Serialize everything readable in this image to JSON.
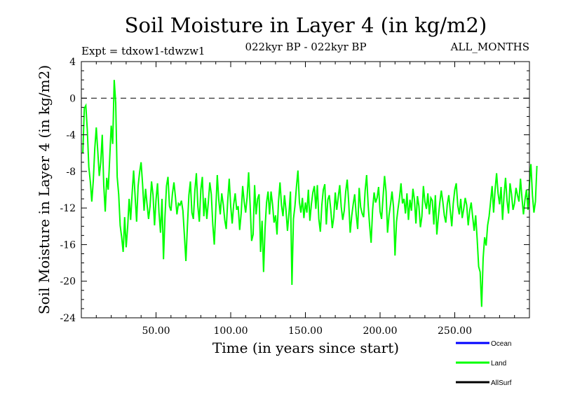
{
  "chart_data": {
    "type": "line",
    "title": "Soil Moisture in Layer 4 (in kg/m2)",
    "subtitle": "022kyr BP - 022kyr BP",
    "experiment": "Expt = tdxow1-tdwzw1",
    "months": "ALL_MONTHS",
    "xlabel": "Time (in years since start)",
    "ylabel": "Soil Moisture in Layer 4 (in kg/m2)",
    "xlim": [
      0,
      300
    ],
    "ylim": [
      -24,
      4
    ],
    "x_ticks": [
      50,
      100,
      150,
      200,
      250
    ],
    "x_tick_labels": [
      "50.00",
      "100.00",
      "150.00",
      "200.00",
      "250.00"
    ],
    "y_ticks": [
      4,
      0,
      -4,
      -8,
      -12,
      -16,
      -20,
      -24
    ],
    "y_tick_labels": [
      "4",
      "0",
      "-4",
      "-8",
      "-12",
      "-16",
      "-20",
      "-24"
    ],
    "reference_line": 0,
    "legend": [
      {
        "name": "Ocean",
        "color": "#0000ff"
      },
      {
        "name": "Land",
        "color": "#00ff00"
      },
      {
        "name": "AllSurf",
        "color": "#000000"
      }
    ],
    "series": [
      {
        "name": "Land",
        "color": "#00ff00",
        "x_step": 1,
        "x_start": 1,
        "values": [
          -6.0,
          -1.1,
          -0.8,
          -3.5,
          -7.5,
          -9.1,
          -11.3,
          -9.0,
          -5.5,
          -3.2,
          -5.8,
          -8.5,
          -7.0,
          -4.0,
          -9.5,
          -12.4,
          -8.7,
          -10.0,
          -6.5,
          -3.0,
          -5.0,
          2.0,
          -0.5,
          -8.6,
          -10.5,
          -13.9,
          -15.2,
          -16.8,
          -13.0,
          -16.3,
          -14.1,
          -11.0,
          -13.3,
          -10.4,
          -7.9,
          -10.7,
          -13.5,
          -9.6,
          -8.1,
          -7.0,
          -9.4,
          -12.3,
          -9.9,
          -11.6,
          -13.2,
          -11.8,
          -9.1,
          -10.6,
          -13.9,
          -11.1,
          -9.3,
          -12.5,
          -14.7,
          -11.0,
          -17.6,
          -12.9,
          -9.6,
          -8.6,
          -11.8,
          -12.3,
          -10.4,
          -9.2,
          -10.8,
          -12.7,
          -11.5,
          -11.7,
          -11.2,
          -12.3,
          -15.0,
          -17.8,
          -14.0,
          -10.6,
          -9.1,
          -12.5,
          -13.2,
          -10.1,
          -8.2,
          -11.8,
          -13.5,
          -10.0,
          -8.6,
          -12.9,
          -10.9,
          -13.2,
          -11.4,
          -9.2,
          -10.5,
          -13.8,
          -16.0,
          -12.2,
          -8.4,
          -11.1,
          -12.7,
          -10.4,
          -11.6,
          -13.3,
          -14.3,
          -11.2,
          -8.8,
          -11.8,
          -13.7,
          -11.6,
          -10.4,
          -12.2,
          -11.8,
          -14.4,
          -12.6,
          -9.6,
          -11.3,
          -12.5,
          -10.8,
          -8.1,
          -11.7,
          -15.6,
          -14.9,
          -9.5,
          -12.7,
          -11.0,
          -10.5,
          -16.8,
          -13.4,
          -19.0,
          -14.2,
          -11.4,
          -10.2,
          -12.7,
          -10.2,
          -11.6,
          -13.6,
          -12.8,
          -14.9,
          -11.3,
          -9.2,
          -11.7,
          -12.9,
          -10.6,
          -12.2,
          -14.5,
          -12.6,
          -10.2,
          -20.4,
          -13.2,
          -11.8,
          -9.7,
          -7.9,
          -11.4,
          -12.5,
          -10.9,
          -13.1,
          -11.4,
          -12.5,
          -10.0,
          -13.4,
          -11.6,
          -10.3,
          -9.6,
          -12.1,
          -9.5,
          -13.2,
          -14.6,
          -11.7,
          -10.0,
          -9.4,
          -13.8,
          -11.1,
          -10.6,
          -12.2,
          -14.2,
          -13.0,
          -10.3,
          -12.2,
          -10.8,
          -9.5,
          -11.9,
          -13.3,
          -12.3,
          -10.2,
          -8.9,
          -11.4,
          -14.7,
          -12.9,
          -11.6,
          -10.5,
          -12.7,
          -14.3,
          -9.8,
          -11.9,
          -12.6,
          -13.0,
          -10.1,
          -8.4,
          -11.6,
          -13.9,
          -15.8,
          -12.2,
          -10.3,
          -11.4,
          -10.9,
          -9.7,
          -12.4,
          -13.2,
          -10.8,
          -8.5,
          -10.2,
          -14.7,
          -12.8,
          -11.6,
          -10.2,
          -11.9,
          -17.2,
          -13.5,
          -12.1,
          -10.9,
          -9.3,
          -11.5,
          -11.0,
          -12.6,
          -10.4,
          -13.3,
          -11.1,
          -12.3,
          -9.9,
          -11.1,
          -13.7,
          -10.7,
          -11.8,
          -14.1,
          -12.9,
          -9.6,
          -11.3,
          -12.1,
          -10.4,
          -12.7,
          -10.9,
          -11.2,
          -13.8,
          -10.6,
          -14.9,
          -13.0,
          -11.4,
          -10.1,
          -11.3,
          -12.8,
          -13.6,
          -11.6,
          -10.6,
          -12.3,
          -14.0,
          -11.5,
          -10.0,
          -9.3,
          -11.7,
          -12.7,
          -11.0,
          -13.1,
          -12.1,
          -10.9,
          -11.7,
          -13.9,
          -12.3,
          -11.4,
          -13.0,
          -14.5,
          -12.8,
          -15.4,
          -18.4,
          -19.0,
          -22.8,
          -17.5,
          -15.2,
          -16.1,
          -13.9,
          -12.9,
          -11.3,
          -9.6,
          -12.5,
          -10.0,
          -8.2,
          -10.4,
          -11.6,
          -9.7,
          -13.3,
          -10.6,
          -8.7,
          -11.2,
          -12.6,
          -9.3,
          -10.5,
          -12.2,
          -11.5,
          -9.8,
          -10.6,
          -11.3,
          -8.8,
          -10.9,
          -12.7,
          -11.1,
          -10.0,
          -12.2,
          -9.3,
          -7.2,
          -10.6,
          -12.5,
          -11.3,
          -7.4
        ]
      }
    ]
  }
}
